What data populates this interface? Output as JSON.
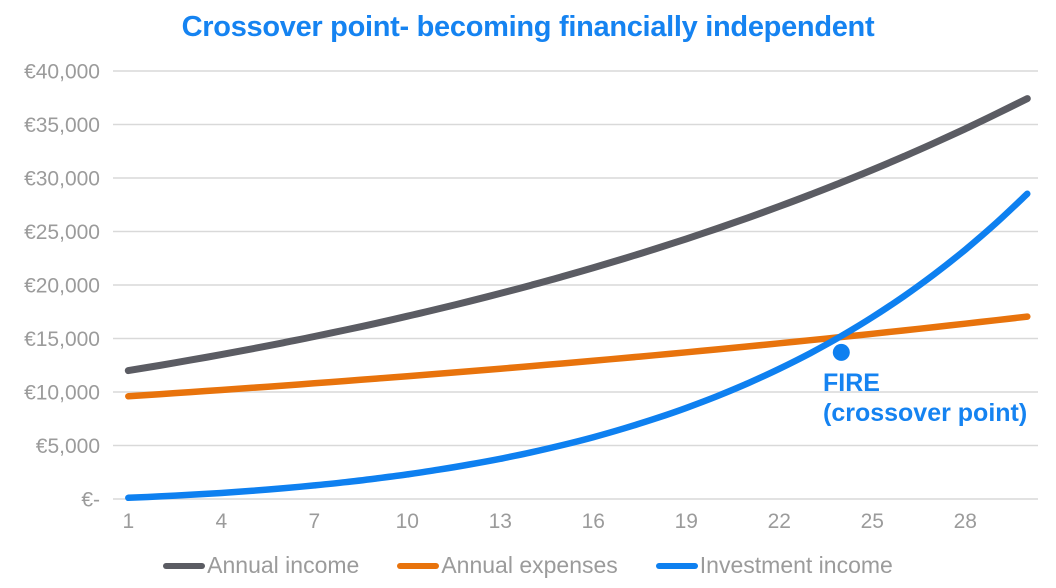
{
  "colors": {
    "title": "#1583F1",
    "annotation": "#1583F1",
    "axis_text": "#9B9B9B",
    "legend_text": "#9B9B9B",
    "gridline": "#D9D9D9",
    "income_gray": "#5B5C63",
    "expenses_orange": "#E8730C",
    "investment_blue": "#0E80F0"
  },
  "chart_data": {
    "type": "line",
    "title": "Crossover point- becoming financially independent",
    "xlabel": "",
    "ylabel": "",
    "grid": "horizontal",
    "legend_position": "bottom",
    "xlim": [
      1,
      30
    ],
    "ylim": [
      0,
      40000
    ],
    "x": [
      1,
      2,
      3,
      4,
      5,
      6,
      7,
      8,
      9,
      10,
      11,
      12,
      13,
      14,
      15,
      16,
      17,
      18,
      19,
      20,
      21,
      22,
      23,
      24,
      25,
      26,
      27,
      28,
      29,
      30
    ],
    "xticks": [
      1,
      4,
      7,
      10,
      13,
      16,
      19,
      22,
      25,
      28
    ],
    "yticks": [
      {
        "label": "€-",
        "value": 0
      },
      {
        "label": "€5,000",
        "value": 5000
      },
      {
        "label": "€10,000",
        "value": 10000
      },
      {
        "label": "€15,000",
        "value": 15000
      },
      {
        "label": "€20,000",
        "value": 20000
      },
      {
        "label": "€25,000",
        "value": 25000
      },
      {
        "label": "€30,000",
        "value": 30000
      },
      {
        "label": "€35,000",
        "value": 35000
      },
      {
        "label": "€40,000",
        "value": 40000
      }
    ],
    "series": [
      {
        "name": "Annual income",
        "color": "#5B5C63",
        "width": 7,
        "values": [
          12000,
          12480,
          12979,
          13499,
          14039,
          14600,
          15184,
          15792,
          16424,
          17080,
          17764,
          18474,
          19213,
          19982,
          20781,
          21612,
          22477,
          23376,
          24311,
          25283,
          26294,
          27346,
          28440,
          29578,
          30761,
          31991,
          33271,
          34602,
          35986,
          37425
        ]
      },
      {
        "name": "Annual expenses",
        "color": "#E8730C",
        "width": 6.5,
        "values": [
          9600,
          9792,
          9988,
          10188,
          10391,
          10599,
          10811,
          11027,
          11248,
          11473,
          11702,
          11936,
          12175,
          12419,
          12667,
          12920,
          13179,
          13442,
          13711,
          13985,
          14265,
          14550,
          14841,
          15138,
          15441,
          15750,
          16065,
          16386,
          16714,
          17048
        ]
      },
      {
        "name": "Investment income",
        "color": "#0E80F0",
        "width": 6.5,
        "values": [
          110,
          240,
          390,
          565,
          770,
          1000,
          1270,
          1570,
          1915,
          2300,
          2735,
          3220,
          3760,
          4365,
          5035,
          5780,
          6605,
          7510,
          8515,
          9620,
          10835,
          12170,
          13630,
          15235,
          16990,
          18910,
          21010,
          23300,
          25800,
          28520
        ]
      }
    ],
    "marker": {
      "label": "crossover-point",
      "x": 24,
      "y": 13700,
      "color": "#0E80F0"
    },
    "annotation": {
      "line1": "FIRE",
      "line2": "(crossover point)",
      "x": 24,
      "y": 13700
    }
  }
}
